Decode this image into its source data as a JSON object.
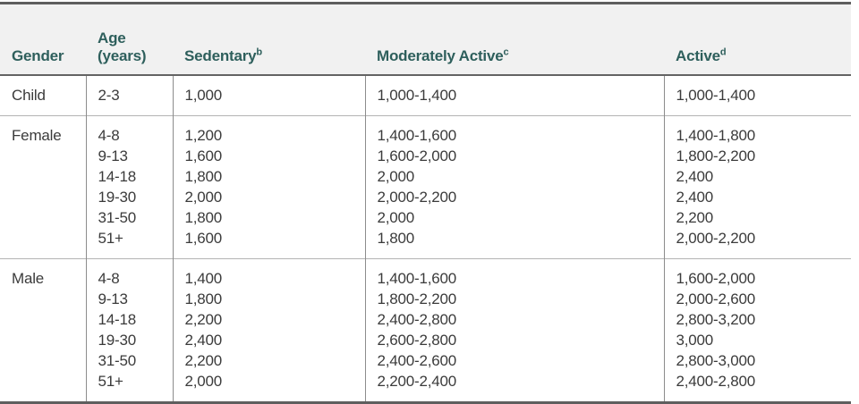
{
  "colors": {
    "header_bg": "#f1f1f1",
    "header_text": "#2e5f5c",
    "body_text": "#3b3b3b",
    "border_dark": "#5e5e5e",
    "row_separator": "#b3b3b3",
    "column_divider": "#8c8c8c"
  },
  "table": {
    "headers": {
      "gender": "Gender",
      "age_line1": "Age",
      "age_line2": "(years)",
      "sedentary": "Sedentary",
      "sedentary_sup": "b",
      "moderately_active": "Moderately Active",
      "moderately_active_sup": "c",
      "active": "Active",
      "active_sup": "d"
    },
    "rows": [
      {
        "gender": "Child",
        "ages": [
          "2-3"
        ],
        "sedentary": [
          "1,000"
        ],
        "moderately_active": [
          "1,000-1,400"
        ],
        "active": [
          "1,000-1,400"
        ]
      },
      {
        "gender": "Female",
        "ages": [
          "4-8",
          "9-13",
          "14-18",
          "19-30",
          "31-50",
          "51+"
        ],
        "sedentary": [
          "1,200",
          "1,600",
          "1,800",
          "2,000",
          "1,800",
          "1,600"
        ],
        "moderately_active": [
          "1,400-1,600",
          "1,600-2,000",
          "2,000",
          "2,000-2,200",
          "2,000",
          "1,800"
        ],
        "active": [
          "1,400-1,800",
          "1,800-2,200",
          "2,400",
          "2,400",
          "2,200",
          "2,000-2,200"
        ]
      },
      {
        "gender": "Male",
        "ages": [
          "4-8",
          "9-13",
          "14-18",
          "19-30",
          "31-50",
          "51+"
        ],
        "sedentary": [
          "1,400",
          "1,800",
          "2,200",
          "2,400",
          "2,200",
          "2,000"
        ],
        "moderately_active": [
          "1,400-1,600",
          "1,800-2,200",
          "2,400-2,800",
          "2,600-2,800",
          "2,400-2,600",
          "2,200-2,400"
        ],
        "active": [
          "1,600-2,000",
          "2,000-2,600",
          "2,800-3,200",
          "3,000",
          "2,800-3,000",
          "2,400-2,800"
        ]
      }
    ]
  },
  "chart_data": {
    "type": "table",
    "columns": [
      "Gender",
      "Age (years)",
      "Sedentary[b]",
      "Moderately Active[c]",
      "Active[d]"
    ],
    "rows": [
      [
        "Child",
        "2-3",
        "1,000",
        "1,000-1,400",
        "1,000-1,400"
      ],
      [
        "Female",
        "4-8",
        "1,200",
        "1,400-1,600",
        "1,400-1,800"
      ],
      [
        "Female",
        "9-13",
        "1,600",
        "1,600-2,000",
        "1,800-2,200"
      ],
      [
        "Female",
        "14-18",
        "1,800",
        "2,000",
        "2,400"
      ],
      [
        "Female",
        "19-30",
        "2,000",
        "2,000-2,200",
        "2,400"
      ],
      [
        "Female",
        "31-50",
        "1,800",
        "2,000",
        "2,200"
      ],
      [
        "Female",
        "51+",
        "1,600",
        "1,800",
        "2,000-2,200"
      ],
      [
        "Male",
        "4-8",
        "1,400",
        "1,400-1,600",
        "1,600-2,000"
      ],
      [
        "Male",
        "9-13",
        "1,800",
        "1,800-2,200",
        "2,000-2,600"
      ],
      [
        "Male",
        "14-18",
        "2,200",
        "2,400-2,800",
        "2,800-3,200"
      ],
      [
        "Male",
        "19-30",
        "2,400",
        "2,600-2,800",
        "3,000"
      ],
      [
        "Male",
        "31-50",
        "2,200",
        "2,400-2,600",
        "2,800-3,000"
      ],
      [
        "Male",
        "51+",
        "2,000",
        "2,200-2,400",
        "2,400-2,800"
      ]
    ]
  }
}
